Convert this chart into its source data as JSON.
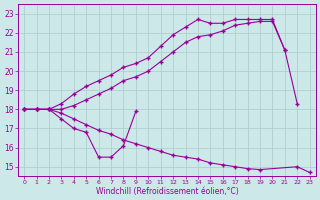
{
  "xlabel": "Windchill (Refroidissement éolien,°C)",
  "xlim": [
    -0.5,
    23.5
  ],
  "ylim": [
    14.5,
    23.5
  ],
  "xticks": [
    0,
    1,
    2,
    3,
    4,
    5,
    6,
    7,
    8,
    9,
    10,
    11,
    12,
    13,
    14,
    15,
    16,
    17,
    18,
    19,
    20,
    21,
    22,
    23
  ],
  "yticks": [
    15,
    16,
    17,
    18,
    19,
    20,
    21,
    22,
    23
  ],
  "background_color": "#cde8e8",
  "line_color": "#990099",
  "grid_color": "#aacccc",
  "line0_x": [
    0,
    1,
    2,
    3,
    4,
    5,
    6,
    7,
    8,
    9,
    10,
    11,
    12,
    13,
    14,
    15,
    16,
    17,
    18,
    19,
    20,
    21
  ],
  "line0_y": [
    18,
    18,
    18,
    18.3,
    18.8,
    19.2,
    19.5,
    19.8,
    20.2,
    20.4,
    20.7,
    21.3,
    21.9,
    22.3,
    22.7,
    22.5,
    22.5,
    22.7,
    22.7,
    22.7,
    22.7,
    21.1
  ],
  "line1_x": [
    0,
    1,
    2,
    3,
    4,
    5,
    6,
    7,
    8,
    9,
    10,
    11,
    12,
    13,
    14,
    15,
    16,
    17,
    18,
    19,
    20,
    21,
    22
  ],
  "line1_y": [
    18,
    18,
    18,
    18.0,
    18.2,
    18.5,
    18.8,
    19.1,
    19.5,
    19.7,
    20.0,
    20.5,
    21.0,
    21.5,
    21.8,
    21.9,
    22.1,
    22.4,
    22.5,
    22.6,
    22.6,
    21.1,
    18.3
  ],
  "line2_x": [
    0,
    1,
    2,
    3,
    4,
    5,
    6,
    7,
    8,
    9
  ],
  "line2_y": [
    18,
    18,
    18,
    17.5,
    17.0,
    16.8,
    15.5,
    15.5,
    16.1,
    17.9
  ],
  "line3_x": [
    0,
    1,
    2,
    3,
    4,
    5,
    6,
    7,
    8,
    9,
    10,
    11,
    12,
    13,
    14,
    15,
    16,
    17,
    18,
    19,
    22,
    23
  ],
  "line3_y": [
    18,
    18,
    18,
    17.8,
    17.5,
    17.2,
    16.9,
    16.7,
    16.4,
    16.2,
    16.0,
    15.8,
    15.6,
    15.5,
    15.4,
    15.2,
    15.1,
    15.0,
    14.9,
    14.85,
    15.0,
    14.7
  ]
}
